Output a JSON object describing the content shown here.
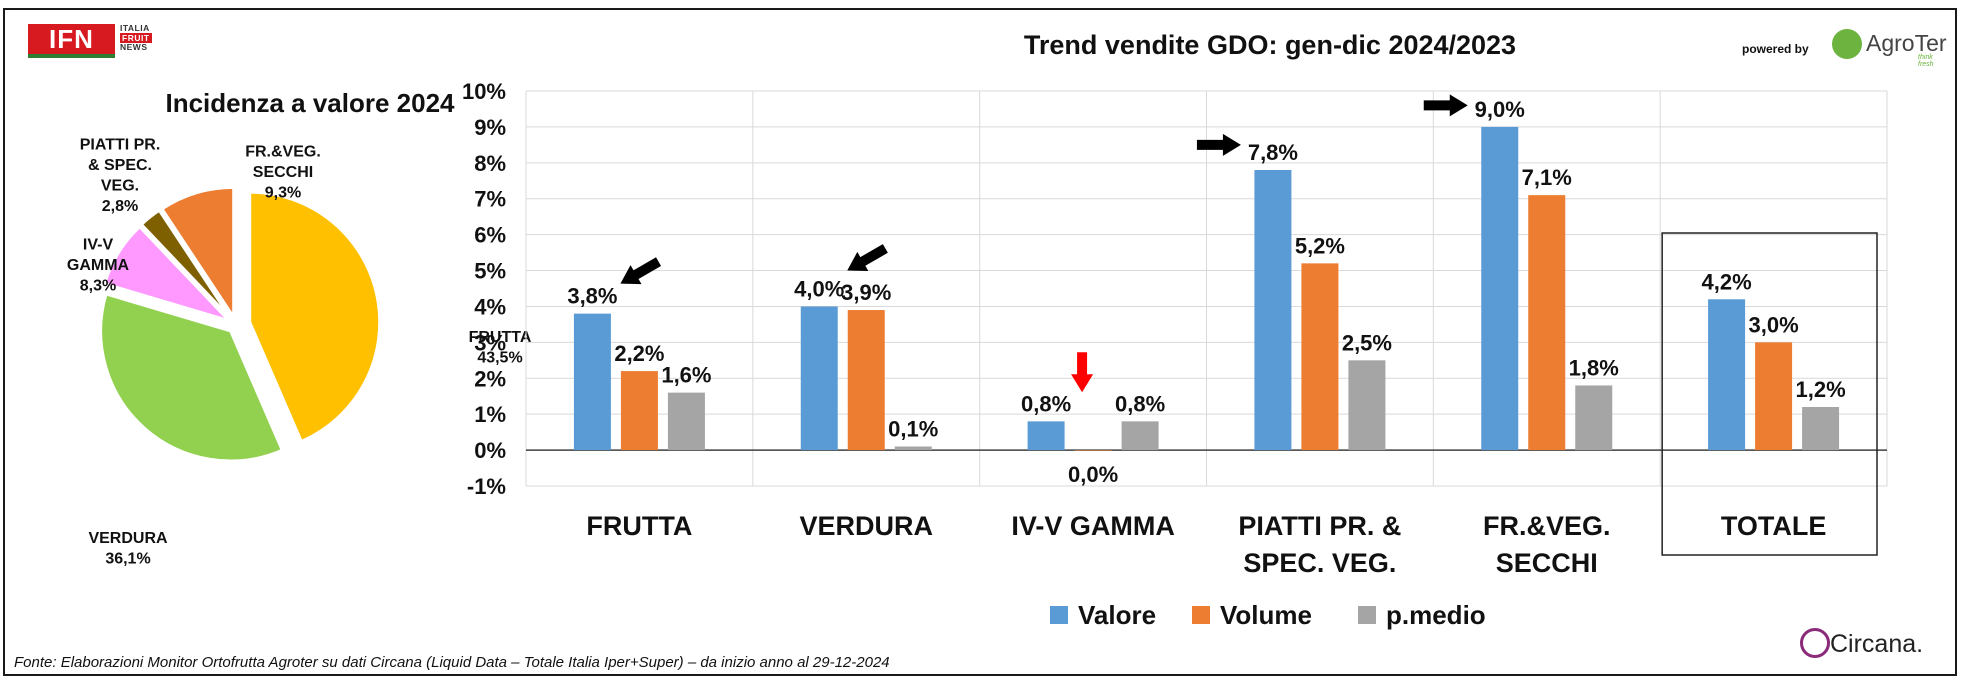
{
  "logo": {
    "main": "IFN",
    "side_line1": "ITALIA",
    "side_line2": "FRUIT",
    "side_line3": "NEWS"
  },
  "powered_by": "powered by",
  "agroter": {
    "name": "AgroTer",
    "tagline": "think fresh"
  },
  "circana": "Circana.",
  "source": "Fonte: Elaborazioni Monitor Ortofrutta Agroter su dati Circana (Liquid Data – Totale Italia Iper+Super) –  da inizio anno al 29-12-2024",
  "colors": {
    "valore": "#5b9bd5",
    "volume": "#ed7d31",
    "pmedio": "#a5a5a5",
    "arrow_black": "#000000",
    "arrow_red": "#ff0000"
  },
  "chart_data": [
    {
      "type": "pie",
      "title": "Incidenza a valore 2024",
      "slices": [
        {
          "label": "FRUTTA",
          "value": 43.5,
          "value_label": "43,5%",
          "color": "#ffc000"
        },
        {
          "label": "VERDURA",
          "value": 36.1,
          "value_label": "36,1%",
          "color": "#92d050"
        },
        {
          "label": "IV-V GAMMA",
          "label_lines": [
            "IV-V",
            "GAMMA"
          ],
          "value": 8.3,
          "value_label": "8,3%",
          "color": "#ff99ff"
        },
        {
          "label": "PIATTI PR. & SPEC. VEG.",
          "label_lines": [
            "PIATTI PR.",
            "& SPEC.",
            "VEG."
          ],
          "value": 2.8,
          "value_label": "2,8%",
          "color": "#7f6000"
        },
        {
          "label": "FR.&VEG. SECCHI",
          "label_lines": [
            "FR.&VEG.",
            "SECCHI"
          ],
          "value": 9.3,
          "value_label": "9,3%",
          "color": "#ed7d31"
        }
      ]
    },
    {
      "type": "bar",
      "title": "Trend vendite GDO: gen-dic 2024/2023",
      "categories": [
        "FRUTTA",
        "VERDURA",
        "IV-V GAMMA",
        "PIATTI PR. & SPEC. VEG.",
        "FR.&VEG. SECCHI",
        "TOTALE"
      ],
      "category_lines": [
        [
          "FRUTTA"
        ],
        [
          "VERDURA"
        ],
        [
          "IV-V GAMMA"
        ],
        [
          "PIATTI PR. &",
          "SPEC. VEG."
        ],
        [
          "FR.&VEG.",
          "SECCHI"
        ],
        [
          "TOTALE"
        ]
      ],
      "series": [
        {
          "name": "Valore",
          "values": [
            3.8,
            4.0,
            0.8,
            7.8,
            9.0,
            4.2
          ],
          "labels": [
            "3,8%",
            "4,0%",
            "0,8%",
            "7,8%",
            "9,0%",
            "4,2%"
          ]
        },
        {
          "name": "Volume",
          "values": [
            2.2,
            3.9,
            0.0,
            5.2,
            7.1,
            3.0
          ],
          "labels": [
            "2,2%",
            "3,9%",
            "0,0%",
            "5,2%",
            "7,1%",
            "3,0%"
          ]
        },
        {
          "name": "p.medio",
          "values": [
            1.6,
            0.1,
            0.8,
            2.5,
            1.8,
            1.2
          ],
          "labels": [
            "1,6%",
            "0,1%",
            "0,8%",
            "2,5%",
            "1,8%",
            "1,2%"
          ]
        }
      ],
      "yticks": [
        "-1%",
        "0%",
        "1%",
        "2%",
        "3%",
        "4%",
        "5%",
        "6%",
        "7%",
        "8%",
        "9%",
        "10%"
      ],
      "ylim": [
        -1,
        10
      ],
      "grid": true,
      "legend": "bottom",
      "annotations": [
        {
          "type": "arrow",
          "target": "FRUTTA / Valore",
          "color": "black",
          "direction": "down-left"
        },
        {
          "type": "arrow",
          "target": "VERDURA / Valore",
          "color": "black",
          "direction": "down-left"
        },
        {
          "type": "arrow",
          "target": "IV-V GAMMA / Valore",
          "color": "red",
          "direction": "down"
        },
        {
          "type": "arrow",
          "target": "PIATTI PR. & SPEC. VEG. / Valore",
          "color": "black",
          "direction": "right"
        },
        {
          "type": "arrow",
          "target": "FR.&VEG. SECCHI / Valore",
          "color": "black",
          "direction": "right"
        },
        {
          "type": "box",
          "target": "TOTALE"
        }
      ]
    }
  ]
}
